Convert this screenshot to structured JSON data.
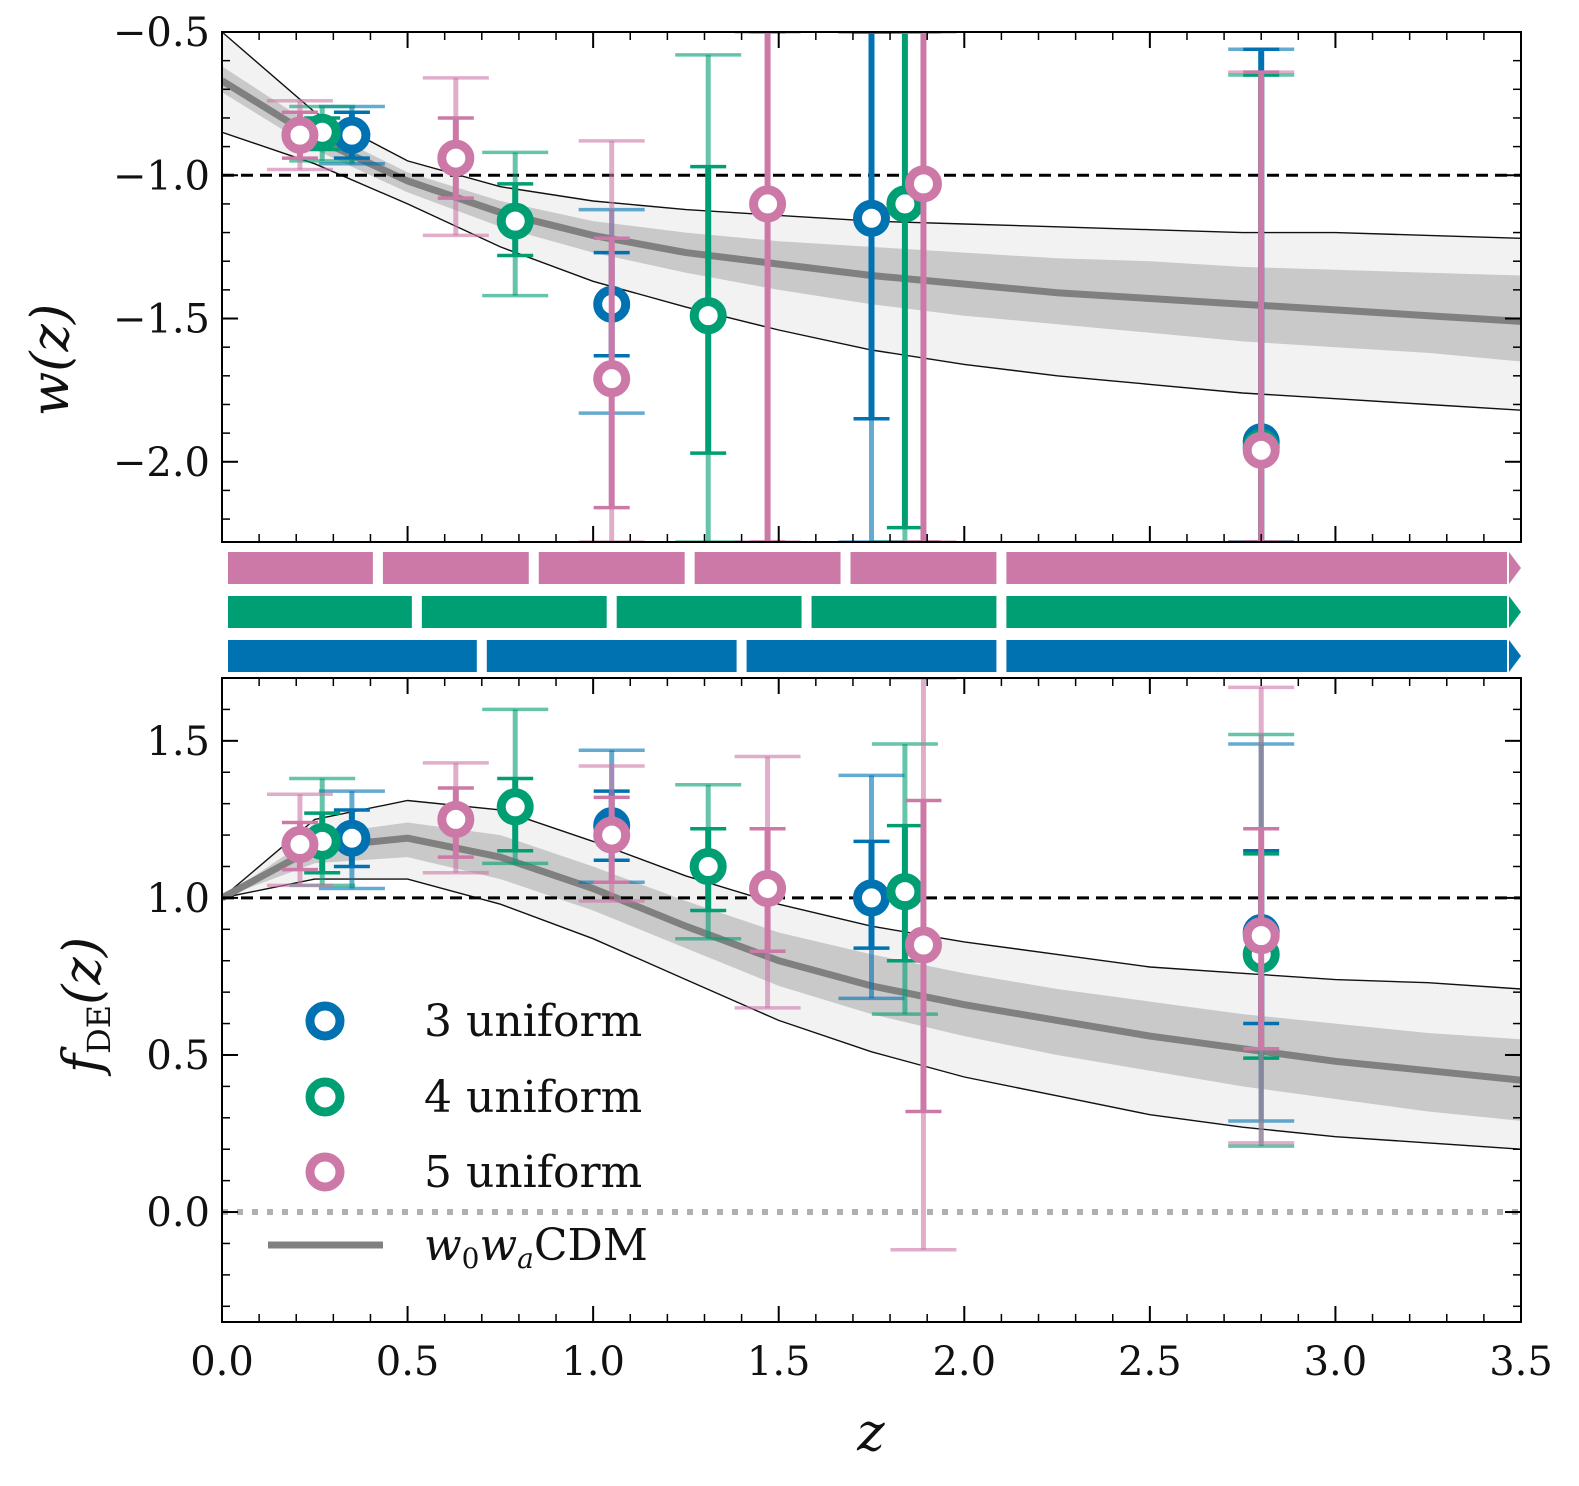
{
  "chart_data": {
    "type": "scatter",
    "xlabel": "z",
    "xlim": [
      0.0,
      3.5
    ],
    "x_ticks": [
      "0.0",
      "0.5",
      "1.0",
      "1.5",
      "2.0",
      "2.5",
      "3.0",
      "3.5"
    ],
    "colors": {
      "3": "#0072B2",
      "4": "#009E73",
      "5": "#CC79A7",
      "model": "#808080"
    },
    "legend": {
      "s3": "3 uniform",
      "s4": "4 uniform",
      "s5": "5 uniform",
      "model_base": "w",
      "model_sub0": "0",
      "model_mid": "w",
      "model_suba": "a",
      "model_tail": "CDM"
    },
    "top": {
      "ylabel": "w(z)",
      "ylim": [
        -2.28,
        -0.5
      ],
      "y_ticks": [
        "−0.5",
        "−1.0",
        "−1.5",
        "−2.0"
      ],
      "reference": -1.0,
      "model": {
        "x": [
          0.0,
          0.25,
          0.5,
          0.75,
          1.0,
          1.25,
          1.5,
          1.75,
          2.0,
          2.25,
          2.5,
          2.75,
          3.0,
          3.25,
          3.5
        ],
        "median": [
          -0.67,
          -0.87,
          -1.02,
          -1.13,
          -1.21,
          -1.27,
          -1.31,
          -1.35,
          -1.38,
          -1.41,
          -1.43,
          -1.45,
          -1.47,
          -1.49,
          -1.51
        ],
        "inner_hi": [
          -0.62,
          -0.83,
          -0.99,
          -1.09,
          -1.16,
          -1.2,
          -1.23,
          -1.25,
          -1.27,
          -1.29,
          -1.3,
          -1.32,
          -1.33,
          -1.34,
          -1.35
        ],
        "inner_lo": [
          -0.71,
          -0.91,
          -1.06,
          -1.18,
          -1.27,
          -1.34,
          -1.4,
          -1.45,
          -1.49,
          -1.52,
          -1.55,
          -1.58,
          -1.6,
          -1.62,
          -1.65
        ],
        "outer_hi": [
          -0.5,
          -0.78,
          -0.95,
          -1.04,
          -1.09,
          -1.12,
          -1.14,
          -1.16,
          -1.17,
          -1.18,
          -1.19,
          -1.2,
          -1.2,
          -1.21,
          -1.22
        ],
        "outer_lo": [
          -0.85,
          -0.96,
          -1.1,
          -1.25,
          -1.37,
          -1.46,
          -1.54,
          -1.61,
          -1.66,
          -1.7,
          -1.73,
          -1.76,
          -1.78,
          -1.8,
          -1.82
        ]
      },
      "series": [
        {
          "name": "3 uniform",
          "x": [
            0.35,
            1.05,
            1.75,
            2.8
          ],
          "y": [
            -0.86,
            -1.45,
            -1.15,
            -1.93
          ],
          "e1": [
            [
              -0.94,
              -0.78
            ],
            [
              -1.63,
              -1.27
            ],
            [
              -1.85,
              -0.5
            ],
            [
              -2.28,
              -0.56
            ]
          ],
          "e2": [
            [
              -0.96,
              -0.76
            ],
            [
              -1.83,
              -1.12
            ],
            [
              -2.28,
              -0.5
            ],
            [
              -2.28,
              -0.56
            ]
          ]
        },
        {
          "name": "4 uniform",
          "x": [
            0.27,
            0.79,
            1.31,
            1.84,
            2.8
          ],
          "y": [
            -0.85,
            -1.16,
            -1.49,
            -1.1,
            -1.95
          ],
          "e1": [
            [
              -0.91,
              -0.8
            ],
            [
              -1.28,
              -1.03
            ],
            [
              -1.97,
              -0.97
            ],
            [
              -2.23,
              -0.5
            ],
            [
              -2.28,
              -0.65
            ]
          ],
          "e2": [
            [
              -0.95,
              -0.76
            ],
            [
              -1.42,
              -0.92
            ],
            [
              -2.28,
              -0.58
            ],
            [
              -2.28,
              -0.5
            ],
            [
              -2.28,
              -0.65
            ]
          ]
        },
        {
          "name": "5 uniform",
          "x": [
            0.21,
            0.63,
            1.05,
            1.47,
            1.89,
            2.8
          ],
          "y": [
            -0.86,
            -0.94,
            -1.71,
            -1.1,
            -1.03,
            -1.96
          ],
          "e1": [
            [
              -0.94,
              -0.78
            ],
            [
              -1.08,
              -0.8
            ],
            [
              -2.16,
              -1.22
            ],
            [
              -2.28,
              -0.5
            ],
            [
              -2.28,
              -0.5
            ],
            [
              -2.28,
              -0.64
            ]
          ],
          "e2": [
            [
              -0.98,
              -0.74
            ],
            [
              -1.21,
              -0.66
            ],
            [
              -2.28,
              -0.88
            ],
            [
              -2.28,
              -0.5
            ],
            [
              -2.28,
              -0.5
            ],
            [
              -2.28,
              -0.64
            ]
          ]
        }
      ]
    },
    "bins": [
      {
        "name": "5 uniform",
        "edges": [
          0.0,
          0.42,
          0.84,
          1.26,
          1.68,
          2.1,
          3.5
        ]
      },
      {
        "name": "4 uniform",
        "edges": [
          0.0,
          0.525,
          1.05,
          1.575,
          2.1,
          3.5
        ]
      },
      {
        "name": "3 uniform",
        "edges": [
          0.0,
          0.7,
          1.4,
          2.1,
          3.5
        ]
      }
    ],
    "bottom": {
      "ylabel": "f_DE(z)",
      "ylabel_base": "f",
      "ylabel_sub": "DE",
      "ylabel_arg": "(z)",
      "ylim": [
        -0.35,
        1.7
      ],
      "y_ticks": [
        "0.0",
        "0.5",
        "1.0",
        "1.5"
      ],
      "reference": 1.0,
      "zero_line": 0.0,
      "model": {
        "x": [
          0.0,
          0.25,
          0.5,
          0.75,
          1.0,
          1.25,
          1.5,
          1.75,
          2.0,
          2.25,
          2.5,
          2.75,
          3.0,
          3.25,
          3.5
        ],
        "median": [
          1.0,
          1.16,
          1.19,
          1.13,
          1.03,
          0.91,
          0.8,
          0.72,
          0.66,
          0.61,
          0.56,
          0.52,
          0.48,
          0.45,
          0.42
        ],
        "inner_hi": [
          1.0,
          1.2,
          1.24,
          1.2,
          1.1,
          0.99,
          0.89,
          0.82,
          0.76,
          0.71,
          0.67,
          0.63,
          0.6,
          0.57,
          0.55
        ],
        "inner_lo": [
          1.0,
          1.11,
          1.13,
          1.06,
          0.96,
          0.84,
          0.72,
          0.63,
          0.56,
          0.5,
          0.45,
          0.4,
          0.36,
          0.32,
          0.29
        ],
        "outer_hi": [
          1.0,
          1.25,
          1.31,
          1.28,
          1.18,
          1.07,
          0.98,
          0.91,
          0.86,
          0.82,
          0.78,
          0.76,
          0.74,
          0.73,
          0.71
        ],
        "outer_lo": [
          1.0,
          1.06,
          1.06,
          0.98,
          0.87,
          0.74,
          0.61,
          0.51,
          0.43,
          0.37,
          0.31,
          0.27,
          0.24,
          0.22,
          0.2
        ]
      },
      "series": [
        {
          "name": "3 uniform",
          "x": [
            0.35,
            1.05,
            1.75,
            2.8
          ],
          "y": [
            1.19,
            1.23,
            1.0,
            0.89
          ],
          "e1": [
            [
              1.1,
              1.28
            ],
            [
              1.12,
              1.34
            ],
            [
              0.84,
              1.18
            ],
            [
              0.6,
              1.15
            ]
          ],
          "e2": [
            [
              1.03,
              1.34
            ],
            [
              1.05,
              1.47
            ],
            [
              0.68,
              1.39
            ],
            [
              0.29,
              1.49
            ]
          ]
        },
        {
          "name": "4 uniform",
          "x": [
            0.27,
            0.79,
            1.31,
            1.84,
            2.8
          ],
          "y": [
            1.18,
            1.29,
            1.1,
            1.02,
            0.82
          ],
          "e1": [
            [
              1.08,
              1.27
            ],
            [
              1.15,
              1.38
            ],
            [
              0.96,
              1.22
            ],
            [
              0.8,
              1.23
            ],
            [
              0.49,
              1.14
            ]
          ],
          "e2": [
            [
              1.04,
              1.38
            ],
            [
              1.11,
              1.6
            ],
            [
              0.87,
              1.36
            ],
            [
              0.63,
              1.49
            ],
            [
              0.21,
              1.52
            ]
          ]
        },
        {
          "name": "5 uniform",
          "x": [
            0.21,
            0.63,
            1.05,
            1.47,
            1.89,
            2.8
          ],
          "y": [
            1.17,
            1.25,
            1.2,
            1.03,
            0.85,
            0.88
          ],
          "e1": [
            [
              1.09,
              1.24
            ],
            [
              1.13,
              1.35
            ],
            [
              1.05,
              1.32
            ],
            [
              0.83,
              1.22
            ],
            [
              0.32,
              1.31
            ],
            [
              0.52,
              1.22
            ]
          ],
          "e2": [
            [
              1.04,
              1.33
            ],
            [
              1.08,
              1.43
            ],
            [
              0.99,
              1.42
            ],
            [
              0.65,
              1.45
            ],
            [
              -0.12,
              1.7
            ],
            [
              0.22,
              1.67
            ]
          ]
        }
      ]
    }
  }
}
